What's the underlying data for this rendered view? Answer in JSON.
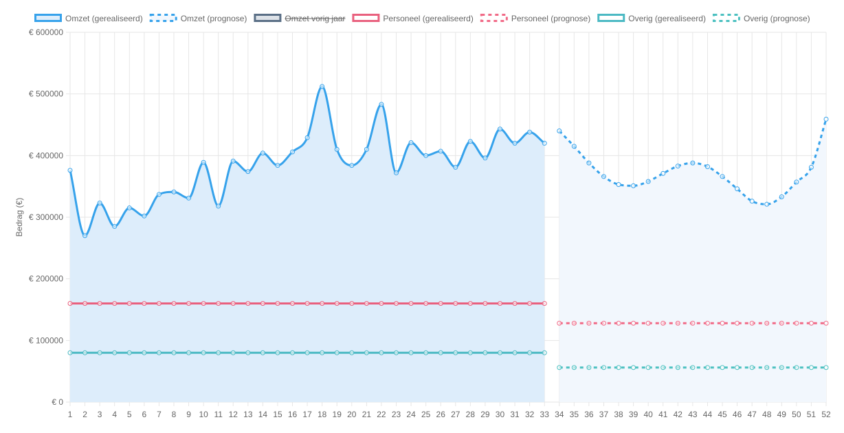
{
  "chart_data": {
    "type": "line",
    "title": "",
    "xlabel": "",
    "ylabel": "Bedrag (€)",
    "categories": [
      1,
      2,
      3,
      4,
      5,
      6,
      7,
      8,
      9,
      10,
      11,
      12,
      13,
      14,
      15,
      16,
      17,
      18,
      19,
      20,
      21,
      22,
      23,
      24,
      25,
      26,
      27,
      28,
      29,
      30,
      31,
      32,
      33,
      34,
      35,
      36,
      37,
      38,
      39,
      40,
      41,
      42,
      43,
      44,
      45,
      46,
      47,
      48,
      49,
      50,
      51,
      52
    ],
    "ylim": [
      0,
      600000
    ],
    "yticks": [
      0,
      100000,
      200000,
      300000,
      400000,
      500000,
      600000
    ],
    "ytick_labels": [
      "€ 0",
      "€ 100000",
      "€ 200000",
      "€ 300000",
      "€ 400000",
      "€ 500000",
      "€ 600000"
    ],
    "grid": true,
    "legend_position": "top",
    "series": [
      {
        "name": "Omzet (gerealiseerd)",
        "style": "solid",
        "fill": true,
        "hidden": false,
        "color": "#36a2eb",
        "fill_color": "#ddedfb",
        "x": [
          1,
          2,
          3,
          4,
          5,
          6,
          7,
          8,
          9,
          10,
          11,
          12,
          13,
          14,
          15,
          16,
          17,
          18,
          19,
          20,
          21,
          22,
          23,
          24,
          25,
          26,
          27,
          28,
          29,
          30,
          31,
          32,
          33
        ],
        "values": [
          376000,
          270000,
          323000,
          285000,
          315000,
          302000,
          337000,
          341000,
          331000,
          389000,
          318000,
          391000,
          374000,
          404000,
          384000,
          406000,
          429000,
          512000,
          410000,
          384000,
          410000,
          483000,
          372000,
          421000,
          400000,
          407000,
          381000,
          423000,
          396000,
          443000,
          420000,
          438000,
          420000
        ]
      },
      {
        "name": "Omzet (prognose)",
        "style": "dashed",
        "fill": true,
        "hidden": false,
        "color": "#36a2eb",
        "fill_color": "#f2f7fd",
        "x": [
          34,
          35,
          36,
          37,
          38,
          39,
          40,
          41,
          42,
          43,
          44,
          45,
          46,
          47,
          48,
          49,
          50,
          51,
          52
        ],
        "values": [
          440000,
          415000,
          388000,
          366000,
          353000,
          351000,
          358000,
          371000,
          383000,
          388000,
          382000,
          366000,
          346000,
          326000,
          321000,
          333000,
          357000,
          381000,
          459000
        ]
      },
      {
        "name": "Omzet vorig jaar",
        "style": "solid",
        "fill": false,
        "hidden": true,
        "color": "#5a6f86",
        "fill_color": "#dde2e8",
        "x": [],
        "values": []
      },
      {
        "name": "Personeel (gerealiseerd)",
        "style": "solid",
        "fill": false,
        "hidden": false,
        "color": "#e9607e",
        "fill_color": "#ffffff",
        "x": [
          1,
          2,
          3,
          4,
          5,
          6,
          7,
          8,
          9,
          10,
          11,
          12,
          13,
          14,
          15,
          16,
          17,
          18,
          19,
          20,
          21,
          22,
          23,
          24,
          25,
          26,
          27,
          28,
          29,
          30,
          31,
          32,
          33
        ],
        "values": [
          160000,
          160000,
          160000,
          160000,
          160000,
          160000,
          160000,
          160000,
          160000,
          160000,
          160000,
          160000,
          160000,
          160000,
          160000,
          160000,
          160000,
          160000,
          160000,
          160000,
          160000,
          160000,
          160000,
          160000,
          160000,
          160000,
          160000,
          160000,
          160000,
          160000,
          160000,
          160000,
          160000
        ]
      },
      {
        "name": "Personeel (prognose)",
        "style": "dashed",
        "fill": false,
        "hidden": false,
        "color": "#f16a87",
        "fill_color": "#ffffff",
        "x": [
          34,
          35,
          36,
          37,
          38,
          39,
          40,
          41,
          42,
          43,
          44,
          45,
          46,
          47,
          48,
          49,
          50,
          51,
          52
        ],
        "values": [
          128000,
          128000,
          128000,
          128000,
          128000,
          128000,
          128000,
          128000,
          128000,
          128000,
          128000,
          128000,
          128000,
          128000,
          128000,
          128000,
          128000,
          128000,
          128000
        ]
      },
      {
        "name": "Overig (gerealiseerd)",
        "style": "solid",
        "fill": false,
        "hidden": false,
        "color": "#4bb9c3",
        "fill_color": "#ffffff",
        "x": [
          1,
          2,
          3,
          4,
          5,
          6,
          7,
          8,
          9,
          10,
          11,
          12,
          13,
          14,
          15,
          16,
          17,
          18,
          19,
          20,
          21,
          22,
          23,
          24,
          25,
          26,
          27,
          28,
          29,
          30,
          31,
          32,
          33
        ],
        "values": [
          80000,
          80000,
          80000,
          80000,
          80000,
          80000,
          80000,
          80000,
          80000,
          80000,
          80000,
          80000,
          80000,
          80000,
          80000,
          80000,
          80000,
          80000,
          80000,
          80000,
          80000,
          80000,
          80000,
          80000,
          80000,
          80000,
          80000,
          80000,
          80000,
          80000,
          80000,
          80000,
          80000
        ]
      },
      {
        "name": "Overig (prognose)",
        "style": "dashed",
        "fill": false,
        "hidden": false,
        "color": "#4bc0c0",
        "fill_color": "#ffffff",
        "x": [
          34,
          35,
          36,
          37,
          38,
          39,
          40,
          41,
          42,
          43,
          44,
          45,
          46,
          47,
          48,
          49,
          50,
          51,
          52
        ],
        "values": [
          56000,
          56000,
          56000,
          56000,
          56000,
          56000,
          56000,
          56000,
          56000,
          56000,
          56000,
          56000,
          56000,
          56000,
          56000,
          56000,
          56000,
          56000,
          56000
        ]
      }
    ]
  }
}
